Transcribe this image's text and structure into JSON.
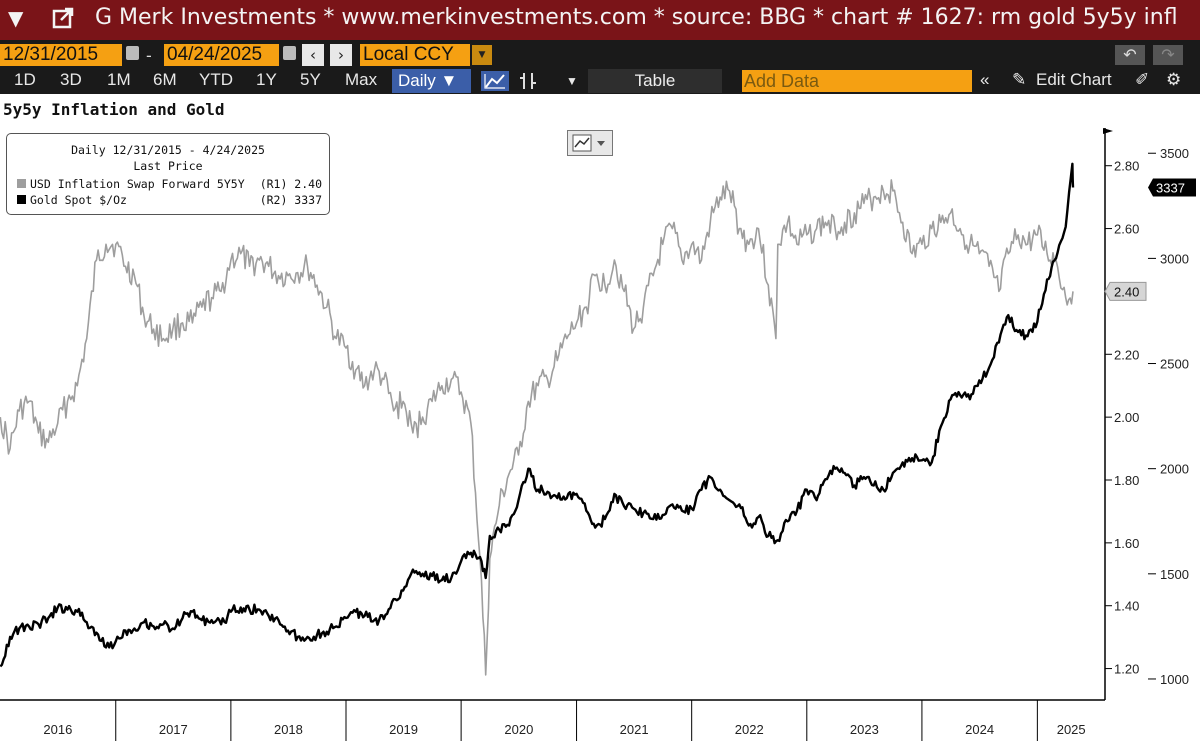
{
  "window": {
    "title": "G Merk Investments * www.merkinvestments.com * source: BBG * chart # 1627: rm gold 5y5y infl"
  },
  "toolbar": {
    "start_date": "12/31/2015",
    "end_date": "04/24/2025",
    "currency": "Local CCY",
    "ranges": [
      "1D",
      "3D",
      "1M",
      "6M",
      "YTD",
      "1Y",
      "5Y",
      "Max"
    ],
    "frequency": "Daily",
    "table_label": "Table",
    "add_data_placeholder": "Add Data",
    "edit_chart_label": "Edit Chart"
  },
  "icons": [
    "dropdown-arrow-icon",
    "pop-out-icon",
    "calendar-icon",
    "chevron-left-icon",
    "chevron-right-icon",
    "undo-icon",
    "redo-icon",
    "line-chart-icon",
    "candlestick-icon",
    "double-chevron-left-icon",
    "pencil-icon",
    "annotate-icon",
    "gear-icon"
  ],
  "colors": {
    "title_bar": "#7a1418",
    "accent_orange": "#f5a012",
    "selected_blue": "#3b5ea8",
    "inflation_series": "#9e9e9e",
    "gold_series": "#000000"
  },
  "chart_data": {
    "type": "line",
    "title": "5y5y Inflation and Gold",
    "legend": {
      "header": "Daily 12/31/2015 - 4/24/2025",
      "subheader": "Last Price",
      "placement": "top-left"
    },
    "x_ticks": [
      "2016",
      "2017",
      "2018",
      "2019",
      "2020",
      "2021",
      "2022",
      "2023",
      "2024",
      "2025"
    ],
    "x_range": [
      "2015-12-31",
      "2025-04-24"
    ],
    "left_axis": {
      "label": "R1",
      "range": [
        1.1,
        2.92
      ],
      "ticks": [
        "1.20",
        "1.40",
        "1.60",
        "1.80",
        "2.00",
        "2.20",
        "2.40",
        "2.60",
        "2.80"
      ]
    },
    "right_axis": {
      "label": "R2",
      "range": [
        900,
        3620
      ],
      "ticks": [
        "1000",
        "1500",
        "2000",
        "2500",
        "3000",
        "3500"
      ]
    },
    "grid": false,
    "series": [
      {
        "name": "USD Inflation Swap Forward 5Y5Y",
        "axis": "R1",
        "last_price_label": "(R1) 2.40",
        "last_value": "2.40",
        "points": [
          [
            "2016-01-01",
            2.0
          ],
          [
            "2016-02-01",
            1.9
          ],
          [
            "2016-03-01",
            2.02
          ],
          [
            "2016-04-01",
            2.05
          ],
          [
            "2016-05-01",
            1.95
          ],
          [
            "2016-06-01",
            1.92
          ],
          [
            "2016-07-01",
            1.98
          ],
          [
            "2016-08-01",
            2.05
          ],
          [
            "2016-09-01",
            2.1
          ],
          [
            "2016-10-01",
            2.25
          ],
          [
            "2016-11-01",
            2.5
          ],
          [
            "2016-12-01",
            2.55
          ],
          [
            "2017-01-01",
            2.55
          ],
          [
            "2017-02-01",
            2.48
          ],
          [
            "2017-03-01",
            2.45
          ],
          [
            "2017-04-01",
            2.32
          ],
          [
            "2017-05-01",
            2.28
          ],
          [
            "2017-06-01",
            2.25
          ],
          [
            "2017-07-01",
            2.28
          ],
          [
            "2017-08-01",
            2.3
          ],
          [
            "2017-09-01",
            2.3
          ],
          [
            "2017-10-01",
            2.35
          ],
          [
            "2017-11-01",
            2.38
          ],
          [
            "2017-12-01",
            2.4
          ],
          [
            "2018-01-01",
            2.5
          ],
          [
            "2018-02-01",
            2.52
          ],
          [
            "2018-03-01",
            2.48
          ],
          [
            "2018-04-01",
            2.5
          ],
          [
            "2018-05-01",
            2.48
          ],
          [
            "2018-06-01",
            2.45
          ],
          [
            "2018-07-01",
            2.45
          ],
          [
            "2018-08-01",
            2.46
          ],
          [
            "2018-09-01",
            2.48
          ],
          [
            "2018-10-01",
            2.42
          ],
          [
            "2018-11-01",
            2.35
          ],
          [
            "2018-12-01",
            2.25
          ],
          [
            "2019-01-01",
            2.22
          ],
          [
            "2019-02-01",
            2.15
          ],
          [
            "2019-03-01",
            2.1
          ],
          [
            "2019-04-01",
            2.15
          ],
          [
            "2019-05-01",
            2.12
          ],
          [
            "2019-06-01",
            2.02
          ],
          [
            "2019-07-01",
            2.05
          ],
          [
            "2019-08-01",
            1.95
          ],
          [
            "2019-09-01",
            2.0
          ],
          [
            "2019-10-01",
            2.05
          ],
          [
            "2019-11-01",
            2.1
          ],
          [
            "2019-12-01",
            2.12
          ],
          [
            "2020-01-01",
            2.08
          ],
          [
            "2020-02-01",
            1.98
          ],
          [
            "2020-03-01",
            1.55
          ],
          [
            "2020-03-19",
            1.18
          ],
          [
            "2020-04-01",
            1.55
          ],
          [
            "2020-05-01",
            1.72
          ],
          [
            "2020-06-01",
            1.82
          ],
          [
            "2020-07-01",
            1.88
          ],
          [
            "2020-08-01",
            2.05
          ],
          [
            "2020-09-01",
            2.1
          ],
          [
            "2020-10-01",
            2.12
          ],
          [
            "2020-11-01",
            2.18
          ],
          [
            "2020-12-01",
            2.25
          ],
          [
            "2021-01-01",
            2.3
          ],
          [
            "2021-02-01",
            2.35
          ],
          [
            "2021-03-01",
            2.45
          ],
          [
            "2021-04-01",
            2.42
          ],
          [
            "2021-05-01",
            2.5
          ],
          [
            "2021-06-01",
            2.4
          ],
          [
            "2021-07-01",
            2.28
          ],
          [
            "2021-08-01",
            2.35
          ],
          [
            "2021-09-01",
            2.45
          ],
          [
            "2021-10-01",
            2.55
          ],
          [
            "2021-11-01",
            2.6
          ],
          [
            "2021-12-01",
            2.5
          ],
          [
            "2022-01-01",
            2.55
          ],
          [
            "2022-02-01",
            2.5
          ],
          [
            "2022-03-01",
            2.62
          ],
          [
            "2022-04-01",
            2.7
          ],
          [
            "2022-05-01",
            2.72
          ],
          [
            "2022-06-01",
            2.6
          ],
          [
            "2022-07-01",
            2.55
          ],
          [
            "2022-08-01",
            2.6
          ],
          [
            "2022-09-01",
            2.42
          ],
          [
            "2022-09-25",
            2.25
          ],
          [
            "2022-10-01",
            2.55
          ],
          [
            "2022-11-01",
            2.62
          ],
          [
            "2022-12-01",
            2.55
          ],
          [
            "2023-01-01",
            2.58
          ],
          [
            "2023-02-01",
            2.6
          ],
          [
            "2023-03-01",
            2.62
          ],
          [
            "2023-04-01",
            2.6
          ],
          [
            "2023-05-01",
            2.62
          ],
          [
            "2023-06-01",
            2.65
          ],
          [
            "2023-07-01",
            2.68
          ],
          [
            "2023-08-01",
            2.7
          ],
          [
            "2023-09-01",
            2.72
          ],
          [
            "2023-10-01",
            2.72
          ],
          [
            "2023-11-01",
            2.62
          ],
          [
            "2023-12-01",
            2.52
          ],
          [
            "2024-01-01",
            2.55
          ],
          [
            "2024-02-01",
            2.6
          ],
          [
            "2024-03-01",
            2.62
          ],
          [
            "2024-04-01",
            2.65
          ],
          [
            "2024-05-01",
            2.6
          ],
          [
            "2024-06-01",
            2.55
          ],
          [
            "2024-07-01",
            2.52
          ],
          [
            "2024-08-01",
            2.48
          ],
          [
            "2024-09-01",
            2.4
          ],
          [
            "2024-10-01",
            2.52
          ],
          [
            "2024-11-01",
            2.58
          ],
          [
            "2024-12-01",
            2.55
          ],
          [
            "2025-01-01",
            2.58
          ],
          [
            "2025-02-01",
            2.52
          ],
          [
            "2025-03-01",
            2.5
          ],
          [
            "2025-04-01",
            2.38
          ],
          [
            "2025-04-24",
            2.4
          ]
        ]
      },
      {
        "name": "Gold Spot $/Oz",
        "axis": "R2",
        "last_price_label": "(R2) 3337",
        "last_value": "3337",
        "points": [
          [
            "2016-01-01",
            1060
          ],
          [
            "2016-02-01",
            1200
          ],
          [
            "2016-03-01",
            1240
          ],
          [
            "2016-04-01",
            1250
          ],
          [
            "2016-05-01",
            1260
          ],
          [
            "2016-06-01",
            1290
          ],
          [
            "2016-07-01",
            1340
          ],
          [
            "2016-08-01",
            1330
          ],
          [
            "2016-09-01",
            1320
          ],
          [
            "2016-10-01",
            1270
          ],
          [
            "2016-11-01",
            1220
          ],
          [
            "2016-12-01",
            1150
          ],
          [
            "2017-01-01",
            1180
          ],
          [
            "2017-02-01",
            1230
          ],
          [
            "2017-03-01",
            1240
          ],
          [
            "2017-04-01",
            1270
          ],
          [
            "2017-05-01",
            1250
          ],
          [
            "2017-06-01",
            1260
          ],
          [
            "2017-07-01",
            1240
          ],
          [
            "2017-08-01",
            1290
          ],
          [
            "2017-09-01",
            1320
          ],
          [
            "2017-10-01",
            1280
          ],
          [
            "2017-11-01",
            1280
          ],
          [
            "2017-12-01",
            1260
          ],
          [
            "2018-01-01",
            1320
          ],
          [
            "2018-02-01",
            1340
          ],
          [
            "2018-03-01",
            1330
          ],
          [
            "2018-04-01",
            1330
          ],
          [
            "2018-05-01",
            1300
          ],
          [
            "2018-06-01",
            1280
          ],
          [
            "2018-07-01",
            1230
          ],
          [
            "2018-08-01",
            1200
          ],
          [
            "2018-09-01",
            1200
          ],
          [
            "2018-10-01",
            1210
          ],
          [
            "2018-11-01",
            1225
          ],
          [
            "2018-12-01",
            1250
          ],
          [
            "2019-01-01",
            1290
          ],
          [
            "2019-02-01",
            1320
          ],
          [
            "2019-03-01",
            1300
          ],
          [
            "2019-04-01",
            1280
          ],
          [
            "2019-05-01",
            1285
          ],
          [
            "2019-06-01",
            1380
          ],
          [
            "2019-07-01",
            1420
          ],
          [
            "2019-08-01",
            1520
          ],
          [
            "2019-09-01",
            1500
          ],
          [
            "2019-10-01",
            1490
          ],
          [
            "2019-11-01",
            1470
          ],
          [
            "2019-12-01",
            1480
          ],
          [
            "2020-01-01",
            1560
          ],
          [
            "2020-02-01",
            1600
          ],
          [
            "2020-03-01",
            1580
          ],
          [
            "2020-03-19",
            1480
          ],
          [
            "2020-04-01",
            1680
          ],
          [
            "2020-05-01",
            1710
          ],
          [
            "2020-06-01",
            1730
          ],
          [
            "2020-07-01",
            1850
          ],
          [
            "2020-08-01",
            2000
          ],
          [
            "2020-09-01",
            1900
          ],
          [
            "2020-10-01",
            1890
          ],
          [
            "2020-11-01",
            1860
          ],
          [
            "2020-12-01",
            1860
          ],
          [
            "2021-01-01",
            1880
          ],
          [
            "2021-02-01",
            1800
          ],
          [
            "2021-03-01",
            1720
          ],
          [
            "2021-04-01",
            1760
          ],
          [
            "2021-05-01",
            1880
          ],
          [
            "2021-06-01",
            1820
          ],
          [
            "2021-07-01",
            1810
          ],
          [
            "2021-08-01",
            1790
          ],
          [
            "2021-09-01",
            1760
          ],
          [
            "2021-10-01",
            1780
          ],
          [
            "2021-11-01",
            1830
          ],
          [
            "2021-12-01",
            1800
          ],
          [
            "2022-01-01",
            1810
          ],
          [
            "2022-02-01",
            1900
          ],
          [
            "2022-03-01",
            1960
          ],
          [
            "2022-04-01",
            1900
          ],
          [
            "2022-05-01",
            1850
          ],
          [
            "2022-06-01",
            1830
          ],
          [
            "2022-07-01",
            1730
          ],
          [
            "2022-08-01",
            1770
          ],
          [
            "2022-09-01",
            1680
          ],
          [
            "2022-10-01",
            1660
          ],
          [
            "2022-11-01",
            1750
          ],
          [
            "2022-12-01",
            1800
          ],
          [
            "2023-01-01",
            1900
          ],
          [
            "2023-02-01",
            1850
          ],
          [
            "2023-03-01",
            1950
          ],
          [
            "2023-04-01",
            2000
          ],
          [
            "2023-05-01",
            1980
          ],
          [
            "2023-06-01",
            1920
          ],
          [
            "2023-07-01",
            1960
          ],
          [
            "2023-08-01",
            1920
          ],
          [
            "2023-09-01",
            1900
          ],
          [
            "2023-10-01",
            1980
          ],
          [
            "2023-11-01",
            2030
          ],
          [
            "2023-12-01",
            2050
          ],
          [
            "2024-01-01",
            2040
          ],
          [
            "2024-02-01",
            2030
          ],
          [
            "2024-03-01",
            2200
          ],
          [
            "2024-04-01",
            2330
          ],
          [
            "2024-05-01",
            2350
          ],
          [
            "2024-06-01",
            2330
          ],
          [
            "2024-07-01",
            2420
          ],
          [
            "2024-08-01",
            2480
          ],
          [
            "2024-09-01",
            2600
          ],
          [
            "2024-10-01",
            2730
          ],
          [
            "2024-11-01",
            2650
          ],
          [
            "2024-12-01",
            2630
          ],
          [
            "2025-01-01",
            2700
          ],
          [
            "2025-02-01",
            2900
          ],
          [
            "2025-03-01",
            3000
          ],
          [
            "2025-04-01",
            3150
          ],
          [
            "2025-04-22",
            3450
          ],
          [
            "2025-04-24",
            3337
          ]
        ]
      }
    ]
  }
}
